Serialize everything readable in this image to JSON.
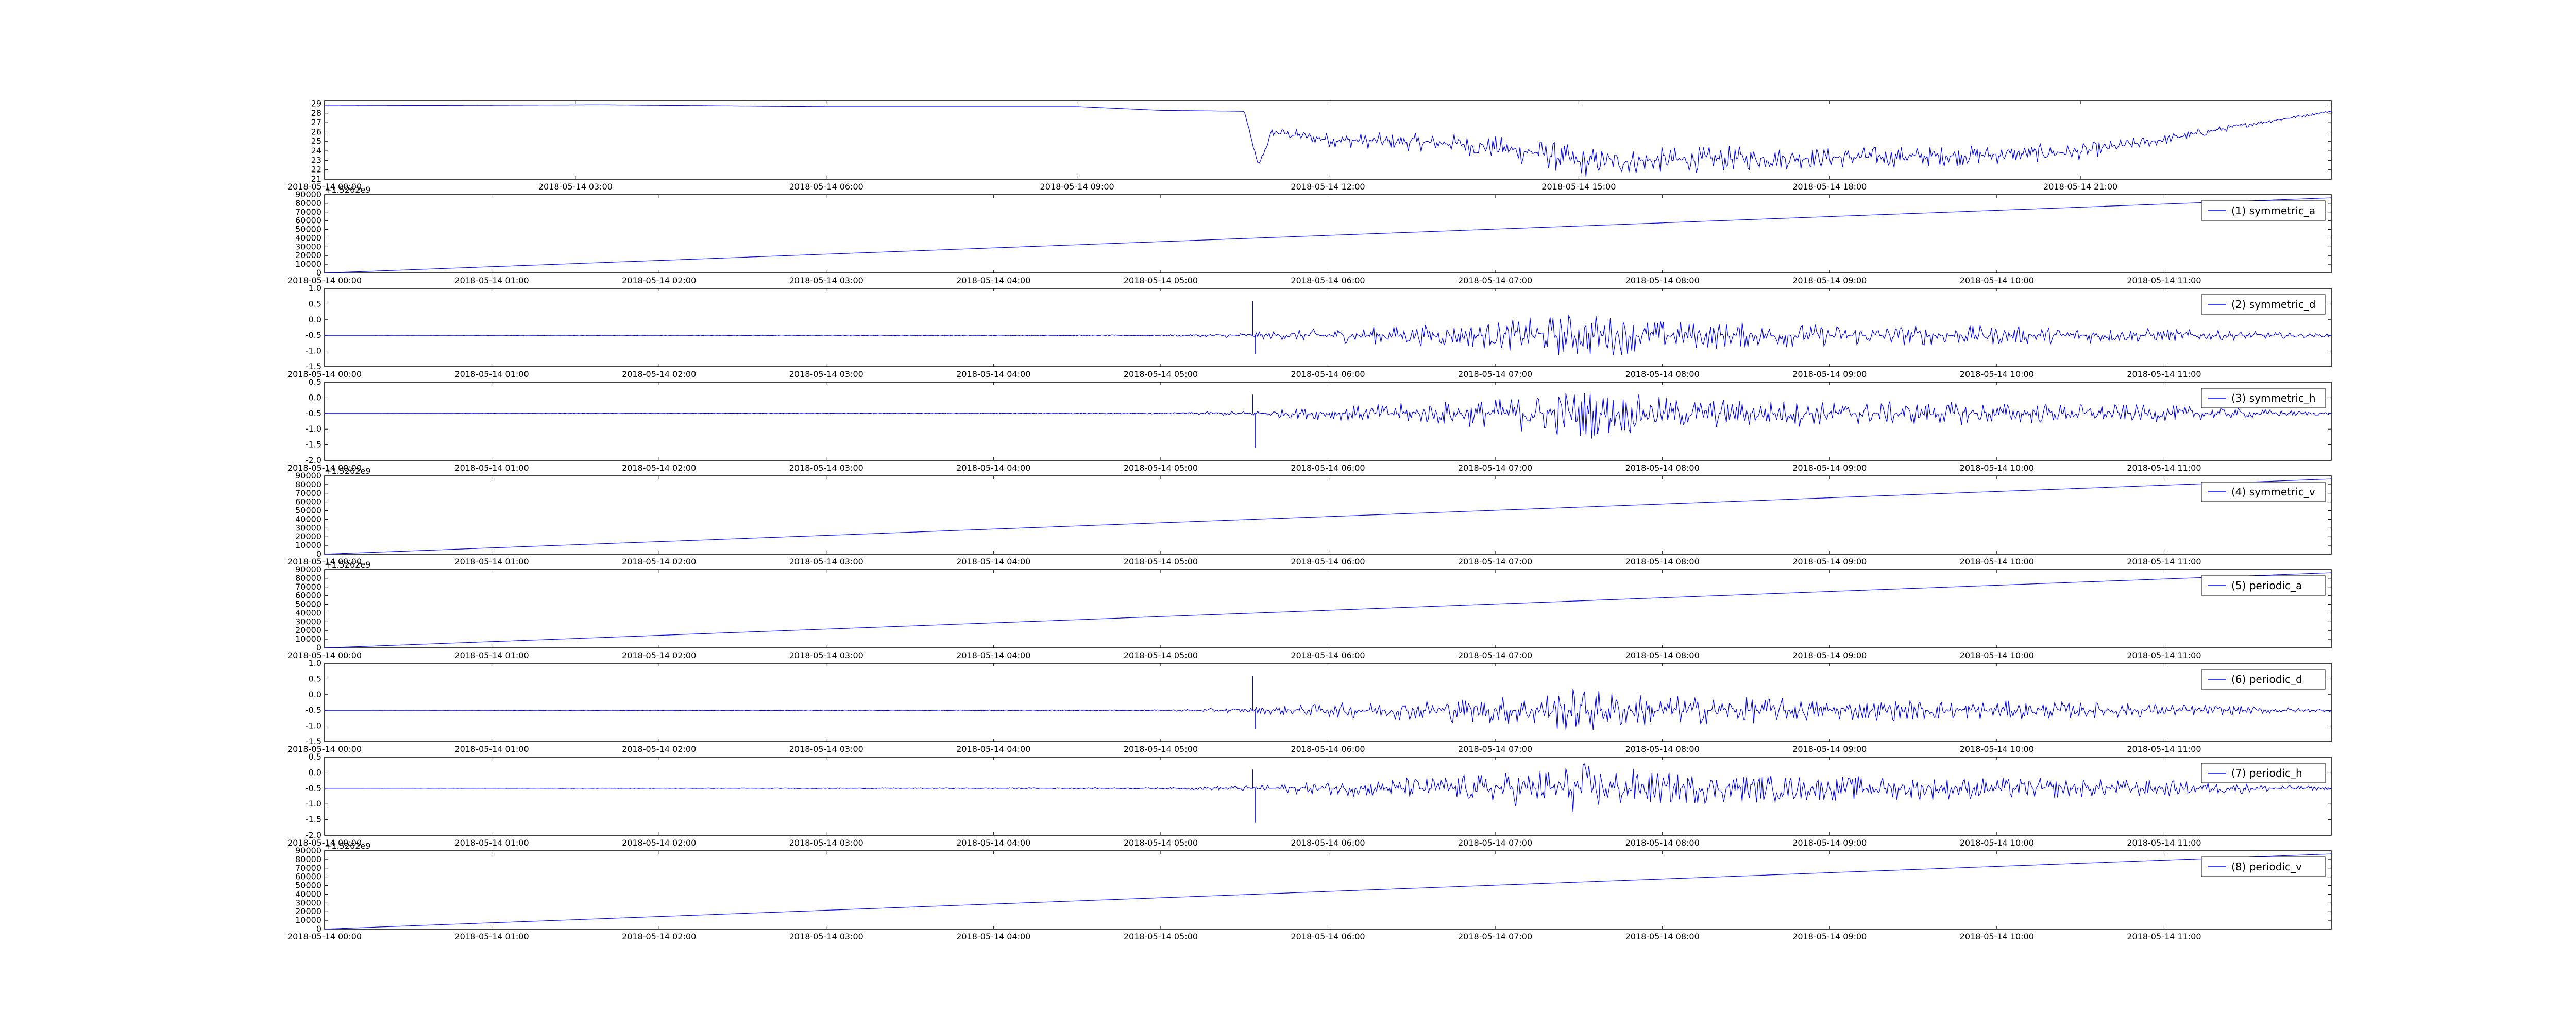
{
  "figure": {
    "background": "#ffffff",
    "line_color": "#0000ff",
    "axis_color": "#000000"
  },
  "chart_data": [
    {
      "type": "line",
      "legend": "",
      "y_ticks": [
        "21",
        "22",
        "23",
        "24",
        "25",
        "26",
        "27",
        "28",
        "29"
      ],
      "y_tick_values": [
        21,
        22,
        23,
        24,
        25,
        26,
        27,
        28,
        29
      ],
      "ylim": [
        21,
        29.3
      ],
      "x_ticks": [
        "2018-05-14 00:00",
        "2018-05-14 03:00",
        "2018-05-14 06:00",
        "2018-05-14 09:00",
        "2018-05-14 12:00",
        "2018-05-14 15:00",
        "2018-05-14 18:00",
        "2018-05-14 21:00"
      ],
      "xlim": [
        "2018-05-14 00:00",
        "2018-05-15 00:00"
      ],
      "series": [
        {
          "x": [
            "2018-05-14 00:00",
            "2018-05-14 03:20",
            "2018-05-14 06:00",
            "2018-05-14 09:00",
            "2018-05-14 10:00",
            "2018-05-14 11:00",
            "2018-05-14 11:10",
            "2018-05-14 11:20",
            "2018-05-14 12:00",
            "2018-05-14 13:30",
            "2018-05-14 14:30",
            "2018-05-14 15:00",
            "2018-05-14 16:00",
            "2018-05-14 17:00",
            "2018-05-14 18:00",
            "2018-05-14 19:00",
            "2018-05-14 20:00",
            "2018-05-14 21:00",
            "2018-05-14 22:00",
            "2018-05-14 23:00",
            "2018-05-15 00:00"
          ],
          "y": [
            28.8,
            28.9,
            28.7,
            28.7,
            28.3,
            28.2,
            22.4,
            26.0,
            25.2,
            24.8,
            23.8,
            22.8,
            23.0,
            23.2,
            23.3,
            23.4,
            23.6,
            23.9,
            25.2,
            26.8,
            28.2
          ],
          "noise": [
            0,
            0,
            0,
            0,
            0,
            0,
            0.4,
            0.6,
            0.9,
            1.2,
            1.8,
            1.9,
            1.6,
            1.5,
            1.3,
            1.3,
            1.2,
            1.0,
            0.7,
            0.3,
            0.1
          ]
        }
      ]
    },
    {
      "type": "line",
      "legend": "(1) symmetric_a",
      "offset_text": "+1.5262e9",
      "y_ticks": [
        "0",
        "10000",
        "20000",
        "30000",
        "40000",
        "50000",
        "60000",
        "70000",
        "80000",
        "90000"
      ],
      "y_tick_values": [
        0,
        10000,
        20000,
        30000,
        40000,
        50000,
        60000,
        70000,
        80000,
        90000
      ],
      "ylim": [
        0,
        90000
      ],
      "x_ticks": [
        "2018-05-14 00:00",
        "2018-05-14 01:00",
        "2018-05-14 02:00",
        "2018-05-14 03:00",
        "2018-05-14 04:00",
        "2018-05-14 05:00",
        "2018-05-14 06:00",
        "2018-05-14 07:00",
        "2018-05-14 08:00",
        "2018-05-14 09:00",
        "2018-05-14 10:00",
        "2018-05-14 11:00"
      ],
      "xlim": [
        "2018-05-14 00:00",
        "2018-05-14 12:00"
      ],
      "series": [
        {
          "x": [
            "2018-05-14 00:00",
            "2018-05-14 12:00"
          ],
          "y": [
            0,
            86400
          ],
          "noise": [
            0,
            0
          ]
        }
      ]
    },
    {
      "type": "line",
      "legend": "(2) symmetric_d",
      "y_ticks": [
        "-1.5",
        "-1.0",
        "-0.5",
        "0.0",
        "0.5",
        "1.0"
      ],
      "y_tick_values": [
        -1.5,
        -1.0,
        -0.5,
        0.0,
        0.5,
        1.0
      ],
      "ylim": [
        -1.5,
        1.0
      ],
      "x_ticks": [
        "2018-05-14 00:00",
        "2018-05-14 01:00",
        "2018-05-14 02:00",
        "2018-05-14 03:00",
        "2018-05-14 04:00",
        "2018-05-14 05:00",
        "2018-05-14 06:00",
        "2018-05-14 07:00",
        "2018-05-14 08:00",
        "2018-05-14 09:00",
        "2018-05-14 10:00",
        "2018-05-14 11:00"
      ],
      "xlim": [
        "2018-05-14 00:00",
        "2018-05-14 12:00"
      ],
      "series": [
        {
          "x": [
            "2018-05-14 00:00",
            "2018-05-14 05:00",
            "2018-05-14 05:30",
            "2018-05-14 06:00",
            "2018-05-14 07:00",
            "2018-05-14 07:30",
            "2018-05-14 08:00",
            "2018-05-14 09:00",
            "2018-05-14 10:00",
            "2018-05-14 11:00",
            "2018-05-14 12:00"
          ],
          "y": [
            -0.5,
            -0.5,
            -0.5,
            -0.5,
            -0.5,
            -0.5,
            -0.5,
            -0.5,
            -0.5,
            -0.5,
            -0.5
          ],
          "noise": [
            0,
            0.02,
            0.1,
            0.25,
            0.5,
            0.85,
            0.55,
            0.4,
            0.35,
            0.25,
            0.05
          ],
          "spikes": [
            {
              "x": "2018-05-14 05:33",
              "y": 0.6
            },
            {
              "x": "2018-05-14 05:34",
              "y": -1.1
            }
          ]
        }
      ]
    },
    {
      "type": "line",
      "legend": "(3) symmetric_h",
      "y_ticks": [
        "-2.0",
        "-1.5",
        "-1.0",
        "-0.5",
        "0.0",
        "0.5"
      ],
      "y_tick_values": [
        -2.0,
        -1.5,
        -1.0,
        -0.5,
        0.0,
        0.5
      ],
      "ylim": [
        -2.0,
        0.5
      ],
      "x_ticks": [
        "2018-05-14 00:00",
        "2018-05-14 01:00",
        "2018-05-14 02:00",
        "2018-05-14 03:00",
        "2018-05-14 04:00",
        "2018-05-14 05:00",
        "2018-05-14 06:00",
        "2018-05-14 07:00",
        "2018-05-14 08:00",
        "2018-05-14 09:00",
        "2018-05-14 10:00",
        "2018-05-14 11:00"
      ],
      "xlim": [
        "2018-05-14 00:00",
        "2018-05-14 12:00"
      ],
      "series": [
        {
          "x": [
            "2018-05-14 00:00",
            "2018-05-14 05:00",
            "2018-05-14 05:30",
            "2018-05-14 06:00",
            "2018-05-14 07:00",
            "2018-05-14 07:30",
            "2018-05-14 08:00",
            "2018-05-14 09:00",
            "2018-05-14 10:00",
            "2018-05-14 11:00",
            "2018-05-14 12:00"
          ],
          "y": [
            -0.5,
            -0.5,
            -0.5,
            -0.5,
            -0.5,
            -0.5,
            -0.5,
            -0.5,
            -0.5,
            -0.5,
            -0.5
          ],
          "noise": [
            0,
            0.02,
            0.1,
            0.25,
            0.55,
            0.95,
            0.6,
            0.45,
            0.4,
            0.3,
            0.05
          ],
          "spikes": [
            {
              "x": "2018-05-14 05:33",
              "y": 0.1
            },
            {
              "x": "2018-05-14 05:34",
              "y": -1.6
            }
          ]
        }
      ]
    },
    {
      "type": "line",
      "legend": "(4) symmetric_v",
      "offset_text": "+1.5262e9",
      "y_ticks": [
        "0",
        "10000",
        "20000",
        "30000",
        "40000",
        "50000",
        "60000",
        "70000",
        "80000",
        "90000"
      ],
      "y_tick_values": [
        0,
        10000,
        20000,
        30000,
        40000,
        50000,
        60000,
        70000,
        80000,
        90000
      ],
      "ylim": [
        0,
        90000
      ],
      "x_ticks": [
        "2018-05-14 00:00",
        "2018-05-14 01:00",
        "2018-05-14 02:00",
        "2018-05-14 03:00",
        "2018-05-14 04:00",
        "2018-05-14 05:00",
        "2018-05-14 06:00",
        "2018-05-14 07:00",
        "2018-05-14 08:00",
        "2018-05-14 09:00",
        "2018-05-14 10:00",
        "2018-05-14 11:00"
      ],
      "xlim": [
        "2018-05-14 00:00",
        "2018-05-14 12:00"
      ],
      "series": [
        {
          "x": [
            "2018-05-14 00:00",
            "2018-05-14 12:00"
          ],
          "y": [
            0,
            86400
          ],
          "noise": [
            0,
            0
          ]
        }
      ]
    },
    {
      "type": "line",
      "legend": "(5) periodic_a",
      "offset_text": "+1.5262e9",
      "y_ticks": [
        "0",
        "10000",
        "20000",
        "30000",
        "40000",
        "50000",
        "60000",
        "70000",
        "80000",
        "90000"
      ],
      "y_tick_values": [
        0,
        10000,
        20000,
        30000,
        40000,
        50000,
        60000,
        70000,
        80000,
        90000
      ],
      "ylim": [
        0,
        90000
      ],
      "x_ticks": [
        "2018-05-14 00:00",
        "2018-05-14 01:00",
        "2018-05-14 02:00",
        "2018-05-14 03:00",
        "2018-05-14 04:00",
        "2018-05-14 05:00",
        "2018-05-14 06:00",
        "2018-05-14 07:00",
        "2018-05-14 08:00",
        "2018-05-14 09:00",
        "2018-05-14 10:00",
        "2018-05-14 11:00"
      ],
      "xlim": [
        "2018-05-14 00:00",
        "2018-05-14 12:00"
      ],
      "series": [
        {
          "x": [
            "2018-05-14 00:00",
            "2018-05-14 12:00"
          ],
          "y": [
            0,
            86400
          ],
          "noise": [
            0,
            0
          ]
        }
      ]
    },
    {
      "type": "line",
      "legend": "(6) periodic_d",
      "y_ticks": [
        "-1.5",
        "-1.0",
        "-0.5",
        "0.0",
        "0.5",
        "1.0"
      ],
      "y_tick_values": [
        -1.5,
        -1.0,
        -0.5,
        0.0,
        0.5,
        1.0
      ],
      "ylim": [
        -1.5,
        1.0
      ],
      "x_ticks": [
        "2018-05-14 00:00",
        "2018-05-14 01:00",
        "2018-05-14 02:00",
        "2018-05-14 03:00",
        "2018-05-14 04:00",
        "2018-05-14 05:00",
        "2018-05-14 06:00",
        "2018-05-14 07:00",
        "2018-05-14 08:00",
        "2018-05-14 09:00",
        "2018-05-14 10:00",
        "2018-05-14 11:00"
      ],
      "xlim": [
        "2018-05-14 00:00",
        "2018-05-14 12:00"
      ],
      "series": [
        {
          "x": [
            "2018-05-14 00:00",
            "2018-05-14 05:00",
            "2018-05-14 05:30",
            "2018-05-14 06:00",
            "2018-05-14 07:00",
            "2018-05-14 07:30",
            "2018-05-14 08:00",
            "2018-05-14 09:00",
            "2018-05-14 10:00",
            "2018-05-14 11:00",
            "2018-05-14 12:00"
          ],
          "y": [
            -0.5,
            -0.5,
            -0.5,
            -0.5,
            -0.5,
            -0.5,
            -0.5,
            -0.5,
            -0.5,
            -0.5,
            -0.5
          ],
          "noise": [
            0,
            0.02,
            0.1,
            0.25,
            0.5,
            0.85,
            0.55,
            0.4,
            0.35,
            0.25,
            0.05
          ],
          "spikes": [
            {
              "x": "2018-05-14 05:33",
              "y": 0.6
            },
            {
              "x": "2018-05-14 05:34",
              "y": -1.1
            }
          ]
        }
      ]
    },
    {
      "type": "line",
      "legend": "(7) periodic_h",
      "y_ticks": [
        "-2.0",
        "-1.5",
        "-1.0",
        "-0.5",
        "0.0",
        "0.5"
      ],
      "y_tick_values": [
        -2.0,
        -1.5,
        -1.0,
        -0.5,
        0.0,
        0.5
      ],
      "ylim": [
        -2.0,
        0.5
      ],
      "x_ticks": [
        "2018-05-14 00:00",
        "2018-05-14 01:00",
        "2018-05-14 02:00",
        "2018-05-14 03:00",
        "2018-05-14 04:00",
        "2018-05-14 05:00",
        "2018-05-14 06:00",
        "2018-05-14 07:00",
        "2018-05-14 08:00",
        "2018-05-14 09:00",
        "2018-05-14 10:00",
        "2018-05-14 11:00"
      ],
      "xlim": [
        "2018-05-14 00:00",
        "2018-05-14 12:00"
      ],
      "series": [
        {
          "x": [
            "2018-05-14 00:00",
            "2018-05-14 05:00",
            "2018-05-14 05:30",
            "2018-05-14 06:00",
            "2018-05-14 07:00",
            "2018-05-14 07:30",
            "2018-05-14 08:00",
            "2018-05-14 09:00",
            "2018-05-14 10:00",
            "2018-05-14 11:00",
            "2018-05-14 12:00"
          ],
          "y": [
            -0.5,
            -0.5,
            -0.5,
            -0.5,
            -0.5,
            -0.5,
            -0.5,
            -0.5,
            -0.5,
            -0.5,
            -0.5
          ],
          "noise": [
            0,
            0.02,
            0.1,
            0.25,
            0.55,
            0.95,
            0.6,
            0.45,
            0.4,
            0.3,
            0.05
          ],
          "spikes": [
            {
              "x": "2018-05-14 05:33",
              "y": 0.1
            },
            {
              "x": "2018-05-14 05:34",
              "y": -1.6
            }
          ]
        }
      ]
    },
    {
      "type": "line",
      "legend": "(8) periodic_v",
      "offset_text": "+1.5262e9",
      "y_ticks": [
        "0",
        "10000",
        "20000",
        "30000",
        "40000",
        "50000",
        "60000",
        "70000",
        "80000",
        "90000"
      ],
      "y_tick_values": [
        0,
        10000,
        20000,
        30000,
        40000,
        50000,
        60000,
        70000,
        80000,
        90000
      ],
      "ylim": [
        0,
        90000
      ],
      "x_ticks": [
        "2018-05-14 00:00",
        "2018-05-14 01:00",
        "2018-05-14 02:00",
        "2018-05-14 03:00",
        "2018-05-14 04:00",
        "2018-05-14 05:00",
        "2018-05-14 06:00",
        "2018-05-14 07:00",
        "2018-05-14 08:00",
        "2018-05-14 09:00",
        "2018-05-14 10:00",
        "2018-05-14 11:00"
      ],
      "xlim": [
        "2018-05-14 00:00",
        "2018-05-14 12:00"
      ],
      "series": [
        {
          "x": [
            "2018-05-14 00:00",
            "2018-05-14 12:00"
          ],
          "y": [
            0,
            86400
          ],
          "noise": [
            0,
            0
          ]
        }
      ]
    }
  ]
}
